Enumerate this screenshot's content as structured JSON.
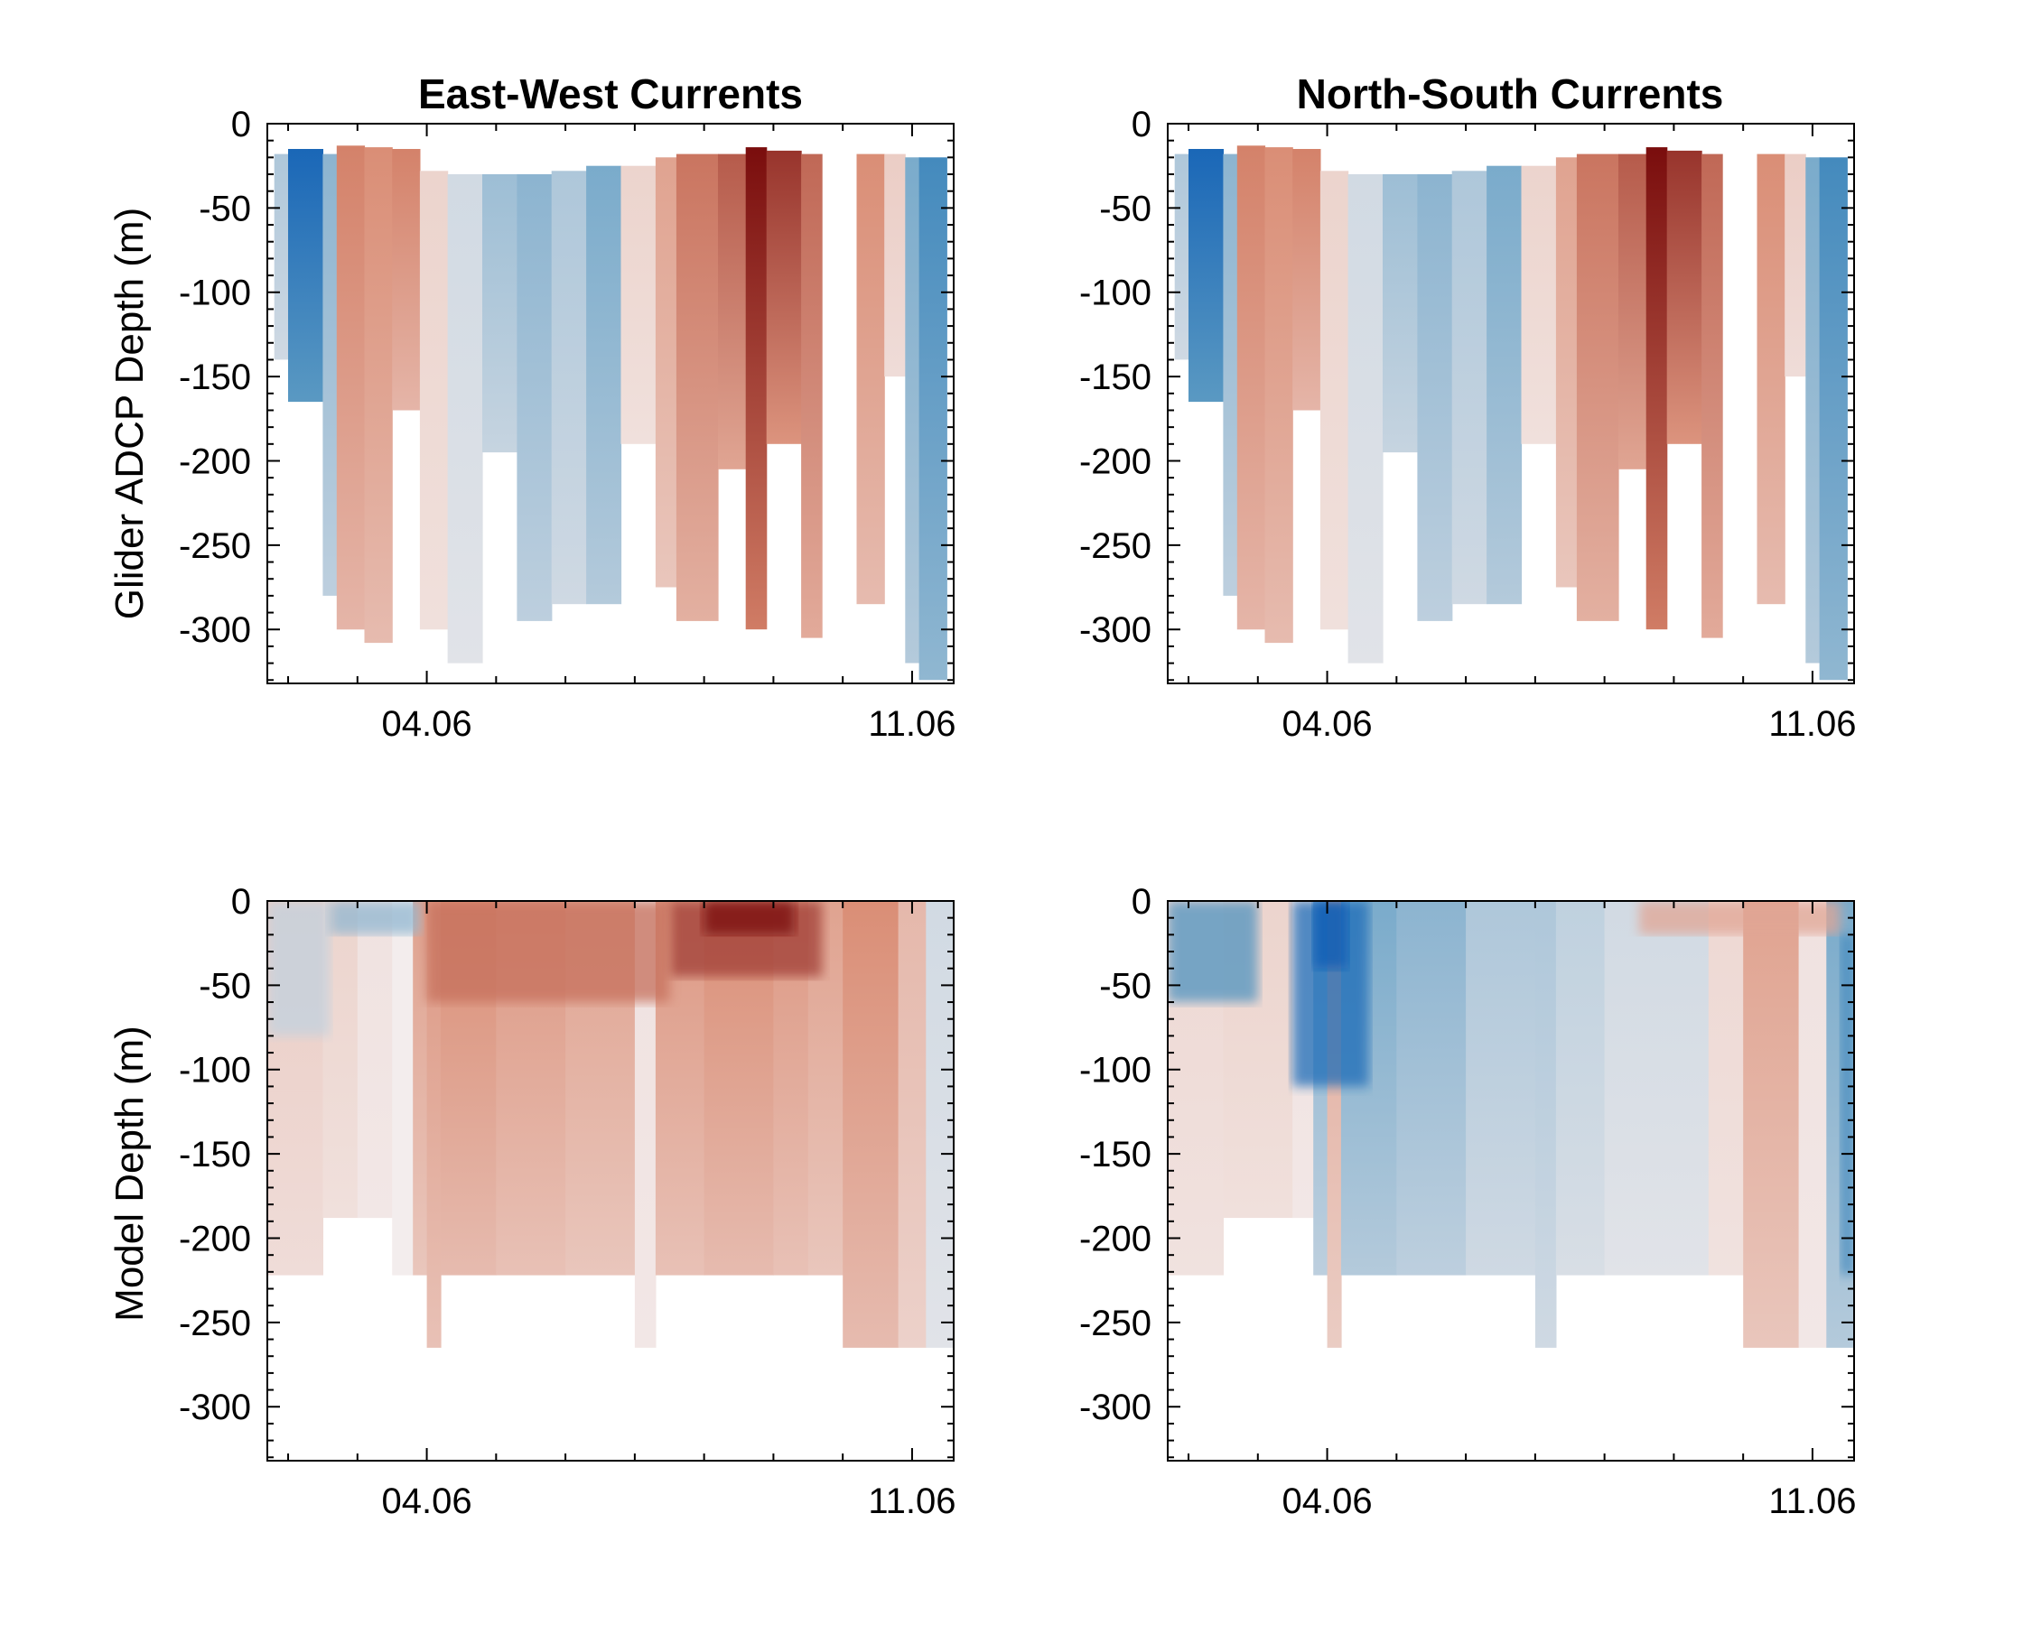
{
  "colors": {
    "negative_strong": "#0b5bb5",
    "negative_mid": "#4f93bf",
    "neutral": "#f3eded",
    "positive_mid": "#d9886f",
    "positive_strong": "#7a0d0d",
    "frame": "#000000",
    "background": "#ffffff"
  },
  "chart_data": [
    {
      "type": "heatmap",
      "title": "East-West Currents",
      "xlabel": "",
      "ylabel": "Glider ADCP Depth (m)",
      "xticks": [
        "04.06",
        "11.06"
      ],
      "xtick_days": [
        4,
        11
      ],
      "xlim_days": [
        1.7,
        11.6
      ],
      "yticks": [
        "0",
        "-50",
        "-100",
        "-150",
        "-200",
        "-250",
        "-300"
      ],
      "ytick_values": [
        0,
        -50,
        -100,
        -150,
        -200,
        -250,
        -300
      ],
      "ylim": [
        -332,
        0
      ],
      "columns": [
        {
          "x": [
            1.8,
            2.0
          ],
          "top": -18,
          "bottom": -140,
          "value": -0.2
        },
        {
          "x": [
            2.0,
            2.5
          ],
          "top": -15,
          "bottom": -165,
          "value": -0.85
        },
        {
          "x": [
            2.5,
            2.7
          ],
          "top": -18,
          "bottom": -280,
          "value": -0.3
        },
        {
          "x": [
            2.7,
            3.1
          ],
          "top": -13,
          "bottom": -300,
          "value": 0.5
        },
        {
          "x": [
            3.1,
            3.5
          ],
          "top": -14,
          "bottom": -308,
          "value": 0.45
        },
        {
          "x": [
            3.5,
            3.9
          ],
          "top": -15,
          "bottom": -170,
          "value": 0.5
        },
        {
          "x": [
            3.9,
            4.3
          ],
          "top": -28,
          "bottom": -300,
          "value": 0.12
        },
        {
          "x": [
            4.3,
            4.8
          ],
          "top": -30,
          "bottom": -320,
          "value": -0.1
        },
        {
          "x": [
            4.8,
            5.3
          ],
          "top": -30,
          "bottom": -195,
          "value": -0.25
        },
        {
          "x": [
            5.3,
            5.8
          ],
          "top": -30,
          "bottom": -295,
          "value": -0.3
        },
        {
          "x": [
            5.8,
            6.3
          ],
          "top": -28,
          "bottom": -285,
          "value": -0.2
        },
        {
          "x": [
            6.3,
            6.8
          ],
          "top": -25,
          "bottom": -285,
          "value": -0.35
        },
        {
          "x": [
            6.8,
            7.3
          ],
          "top": -25,
          "bottom": -190,
          "value": 0.12
        },
        {
          "x": [
            7.3,
            7.6
          ],
          "top": -20,
          "bottom": -275,
          "value": 0.35
        },
        {
          "x": [
            7.6,
            8.2
          ],
          "top": -18,
          "bottom": -295,
          "value": 0.55
        },
        {
          "x": [
            8.2,
            8.6
          ],
          "top": -18,
          "bottom": -205,
          "value": 0.65
        },
        {
          "x": [
            8.6,
            8.9
          ],
          "top": -14,
          "bottom": -300,
          "value": 1.0
        },
        {
          "x": [
            8.9,
            9.4
          ],
          "top": -16,
          "bottom": -190,
          "value": 0.8
        },
        {
          "x": [
            9.4,
            9.7
          ],
          "top": -18,
          "bottom": -305,
          "value": 0.6
        },
        {
          "x": [
            10.2,
            10.6
          ],
          "top": -18,
          "bottom": -285,
          "value": 0.45
        },
        {
          "x": [
            10.6,
            10.9
          ],
          "top": -18,
          "bottom": -150,
          "value": 0.15
        },
        {
          "x": [
            10.9,
            11.1
          ],
          "top": -20,
          "bottom": -320,
          "value": -0.35
        },
        {
          "x": [
            11.1,
            11.5
          ],
          "top": -20,
          "bottom": -330,
          "value": -0.55
        }
      ]
    },
    {
      "type": "heatmap",
      "title": "North-South Currents",
      "xlabel": "",
      "ylabel": "",
      "xticks": [
        "04.06",
        "11.06"
      ],
      "xtick_days": [
        4,
        11
      ],
      "xlim_days": [
        1.7,
        11.6
      ],
      "yticks": [
        "0",
        "-50",
        "-100",
        "-150",
        "-200",
        "-250",
        "-300"
      ],
      "ytick_values": [
        0,
        -50,
        -100,
        -150,
        -200,
        -250,
        -300
      ],
      "ylim": [
        -332,
        0
      ],
      "columns": [
        {
          "x": [
            1.8,
            2.0
          ],
          "top": -18,
          "bottom": -140,
          "value": -0.2
        },
        {
          "x": [
            2.0,
            2.5
          ],
          "top": -15,
          "bottom": -165,
          "value": -0.85
        },
        {
          "x": [
            2.5,
            2.7
          ],
          "top": -18,
          "bottom": -280,
          "value": -0.3
        },
        {
          "x": [
            2.7,
            3.1
          ],
          "top": -13,
          "bottom": -300,
          "value": 0.5
        },
        {
          "x": [
            3.1,
            3.5
          ],
          "top": -14,
          "bottom": -308,
          "value": 0.45
        },
        {
          "x": [
            3.5,
            3.9
          ],
          "top": -15,
          "bottom": -170,
          "value": 0.5
        },
        {
          "x": [
            3.9,
            4.3
          ],
          "top": -28,
          "bottom": -300,
          "value": 0.12
        },
        {
          "x": [
            4.3,
            4.8
          ],
          "top": -30,
          "bottom": -320,
          "value": -0.1
        },
        {
          "x": [
            4.8,
            5.3
          ],
          "top": -30,
          "bottom": -195,
          "value": -0.25
        },
        {
          "x": [
            5.3,
            5.8
          ],
          "top": -30,
          "bottom": -295,
          "value": -0.3
        },
        {
          "x": [
            5.8,
            6.3
          ],
          "top": -28,
          "bottom": -285,
          "value": -0.2
        },
        {
          "x": [
            6.3,
            6.8
          ],
          "top": -25,
          "bottom": -285,
          "value": -0.35
        },
        {
          "x": [
            6.8,
            7.3
          ],
          "top": -25,
          "bottom": -190,
          "value": 0.12
        },
        {
          "x": [
            7.3,
            7.6
          ],
          "top": -20,
          "bottom": -275,
          "value": 0.35
        },
        {
          "x": [
            7.6,
            8.2
          ],
          "top": -18,
          "bottom": -295,
          "value": 0.55
        },
        {
          "x": [
            8.2,
            8.6
          ],
          "top": -18,
          "bottom": -205,
          "value": 0.65
        },
        {
          "x": [
            8.6,
            8.9
          ],
          "top": -14,
          "bottom": -300,
          "value": 1.0
        },
        {
          "x": [
            8.9,
            9.4
          ],
          "top": -16,
          "bottom": -190,
          "value": 0.8
        },
        {
          "x": [
            9.4,
            9.7
          ],
          "top": -18,
          "bottom": -305,
          "value": 0.6
        },
        {
          "x": [
            10.2,
            10.6
          ],
          "top": -18,
          "bottom": -285,
          "value": 0.45
        },
        {
          "x": [
            10.6,
            10.9
          ],
          "top": -18,
          "bottom": -150,
          "value": 0.15
        },
        {
          "x": [
            10.9,
            11.1
          ],
          "top": -20,
          "bottom": -320,
          "value": -0.35
        },
        {
          "x": [
            11.1,
            11.5
          ],
          "top": -20,
          "bottom": -330,
          "value": -0.55
        }
      ]
    },
    {
      "type": "heatmap",
      "title": "",
      "xlabel": "",
      "ylabel": "Model Depth (m)",
      "xticks": [
        "04.06",
        "11.06"
      ],
      "xtick_days": [
        4,
        11
      ],
      "xlim_days": [
        1.7,
        11.6
      ],
      "yticks": [
        "0",
        "-50",
        "-100",
        "-150",
        "-200",
        "-250",
        "-300"
      ],
      "ytick_values": [
        0,
        -50,
        -100,
        -150,
        -200,
        -250,
        -300
      ],
      "ylim": [
        -332,
        0
      ],
      "columns": [
        {
          "x": [
            1.7,
            2.5
          ],
          "top": 0,
          "bottom": -222,
          "value": 0.15
        },
        {
          "x": [
            2.5,
            3.0
          ],
          "top": 0,
          "bottom": -188,
          "value": 0.12
        },
        {
          "x": [
            3.0,
            3.5
          ],
          "top": 0,
          "bottom": -188,
          "value": 0.05
        },
        {
          "x": [
            3.5,
            3.8
          ],
          "top": 0,
          "bottom": -222,
          "value": 0.0
        },
        {
          "x": [
            3.8,
            4.0
          ],
          "top": 0,
          "bottom": -222,
          "value": 0.35
        },
        {
          "x": [
            4.0,
            4.2
          ],
          "top": 0,
          "bottom": -265,
          "value": 0.4
        },
        {
          "x": [
            4.2,
            5.0
          ],
          "top": 0,
          "bottom": -222,
          "value": 0.45
        },
        {
          "x": [
            5.0,
            6.0
          ],
          "top": 0,
          "bottom": -222,
          "value": 0.4
        },
        {
          "x": [
            6.0,
            7.0
          ],
          "top": 0,
          "bottom": -222,
          "value": 0.35
        },
        {
          "x": [
            7.0,
            7.3
          ],
          "top": 0,
          "bottom": -265,
          "value": 0.05
        },
        {
          "x": [
            7.3,
            8.0
          ],
          "top": 0,
          "bottom": -222,
          "value": 0.4
        },
        {
          "x": [
            8.0,
            9.0
          ],
          "top": 0,
          "bottom": -222,
          "value": 0.45
        },
        {
          "x": [
            9.0,
            9.5
          ],
          "top": 0,
          "bottom": -222,
          "value": 0.4
        },
        {
          "x": [
            9.5,
            10.0
          ],
          "top": 0,
          "bottom": -222,
          "value": 0.35
        },
        {
          "x": [
            10.0,
            10.8
          ],
          "top": 0,
          "bottom": -265,
          "value": 0.45
        },
        {
          "x": [
            10.8,
            11.2
          ],
          "top": 0,
          "bottom": -265,
          "value": 0.25
        },
        {
          "x": [
            11.2,
            11.6
          ],
          "top": 0,
          "bottom": -265,
          "value": -0.1
        }
      ],
      "overlays": [
        {
          "x": [
            7.5,
            9.7
          ],
          "top": 0,
          "bottom": -45,
          "value": 0.8
        },
        {
          "x": [
            8.0,
            9.3
          ],
          "top": 0,
          "bottom": -20,
          "value": 1.0
        },
        {
          "x": [
            4.0,
            7.5
          ],
          "top": 0,
          "bottom": -60,
          "value": 0.6
        },
        {
          "x": [
            1.7,
            2.6
          ],
          "top": 0,
          "bottom": -80,
          "value": -0.15
        },
        {
          "x": [
            2.6,
            3.9
          ],
          "top": 0,
          "bottom": -20,
          "value": -0.3
        }
      ]
    },
    {
      "type": "heatmap",
      "title": "",
      "xlabel": "",
      "ylabel": "",
      "xticks": [
        "04.06",
        "11.06"
      ],
      "xtick_days": [
        4,
        11
      ],
      "xlim_days": [
        1.7,
        11.6
      ],
      "yticks": [
        "0",
        "-50",
        "-100",
        "-150",
        "-200",
        "-250",
        "-300"
      ],
      "ytick_values": [
        0,
        -50,
        -100,
        -150,
        -200,
        -250,
        -300
      ],
      "ylim": [
        -332,
        0
      ],
      "columns": [
        {
          "x": [
            1.7,
            2.5
          ],
          "top": 0,
          "bottom": -222,
          "value": 0.1
        },
        {
          "x": [
            2.5,
            3.5
          ],
          "top": 0,
          "bottom": -188,
          "value": 0.12
        },
        {
          "x": [
            3.5,
            3.8
          ],
          "top": 0,
          "bottom": -188,
          "value": 0.05
        },
        {
          "x": [
            3.8,
            4.0
          ],
          "top": 0,
          "bottom": -222,
          "value": -0.3
        },
        {
          "x": [
            4.0,
            4.2
          ],
          "top": 0,
          "bottom": -265,
          "value": 0.3
        },
        {
          "x": [
            4.2,
            5.0
          ],
          "top": 0,
          "bottom": -222,
          "value": -0.35
        },
        {
          "x": [
            5.0,
            6.0
          ],
          "top": 0,
          "bottom": -222,
          "value": -0.3
        },
        {
          "x": [
            6.0,
            7.0
          ],
          "top": 0,
          "bottom": -222,
          "value": -0.2
        },
        {
          "x": [
            7.0,
            7.3
          ],
          "top": 0,
          "bottom": -265,
          "value": -0.2
        },
        {
          "x": [
            7.3,
            8.0
          ],
          "top": 0,
          "bottom": -222,
          "value": -0.15
        },
        {
          "x": [
            8.0,
            9.5
          ],
          "top": 0,
          "bottom": -222,
          "value": -0.1
        },
        {
          "x": [
            9.5,
            10.0
          ],
          "top": 0,
          "bottom": -222,
          "value": 0.1
        },
        {
          "x": [
            10.0,
            10.8
          ],
          "top": 0,
          "bottom": -265,
          "value": 0.35
        },
        {
          "x": [
            10.8,
            11.2
          ],
          "top": 0,
          "bottom": -265,
          "value": 0.05
        },
        {
          "x": [
            11.2,
            11.6
          ],
          "top": 0,
          "bottom": -265,
          "value": -0.35
        }
      ],
      "overlays": [
        {
          "x": [
            3.5,
            4.6
          ],
          "top": 0,
          "bottom": -110,
          "value": -0.85
        },
        {
          "x": [
            3.8,
            4.3
          ],
          "top": 0,
          "bottom": -40,
          "value": -1.0
        },
        {
          "x": [
            1.7,
            3.0
          ],
          "top": 0,
          "bottom": -60,
          "value": -0.5
        },
        {
          "x": [
            8.5,
            11.4
          ],
          "top": 0,
          "bottom": -20,
          "value": 0.35
        },
        {
          "x": [
            11.4,
            11.6
          ],
          "top": -20,
          "bottom": -222,
          "value": -0.6
        }
      ]
    }
  ]
}
